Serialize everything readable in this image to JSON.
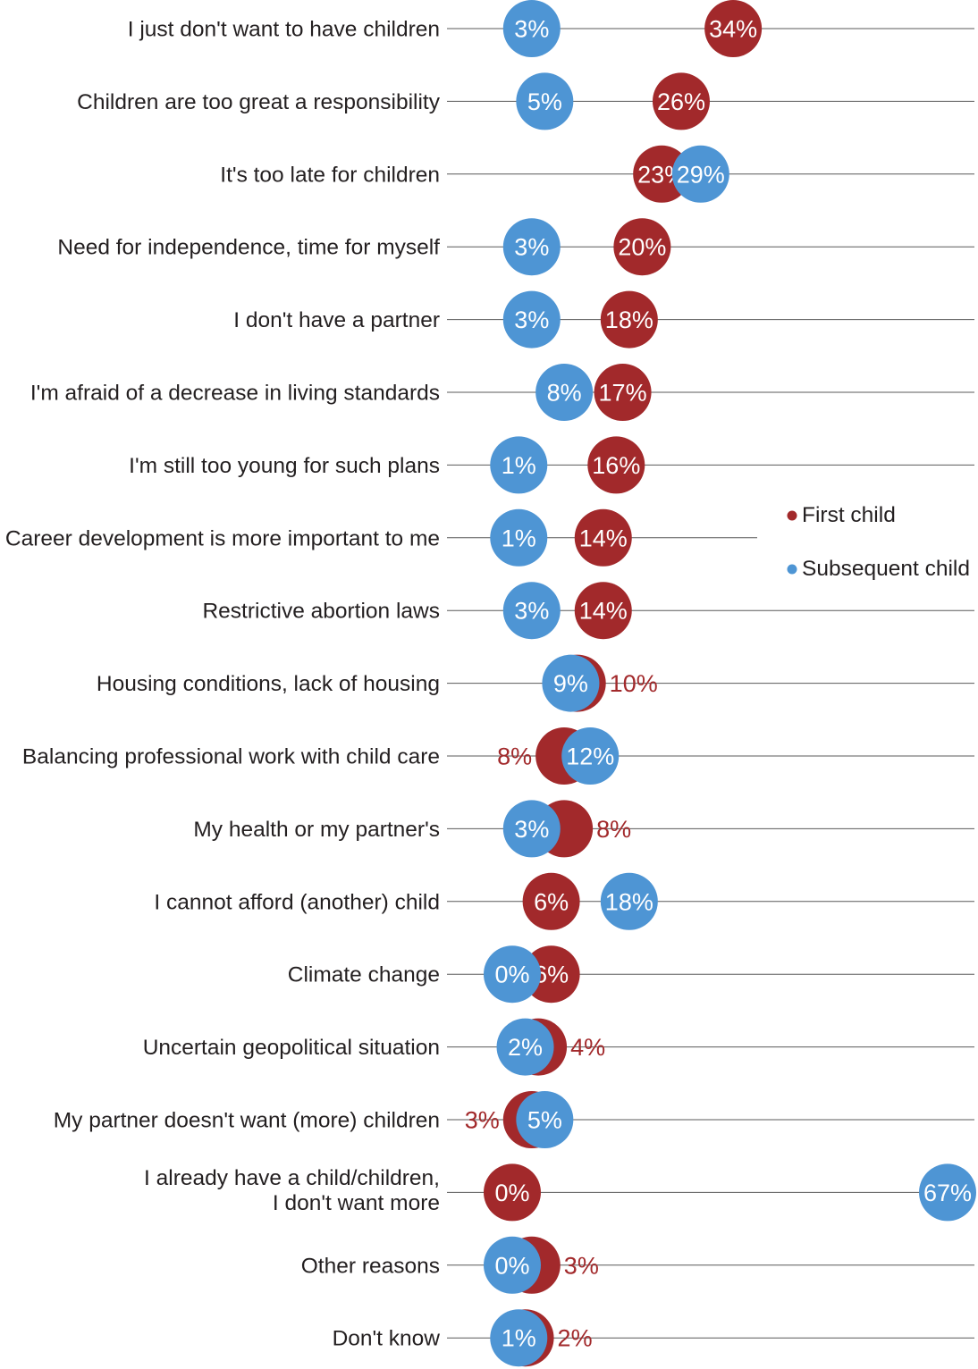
{
  "chart_data": {
    "type": "scatter",
    "orientation": "horizontal",
    "categories": [
      "I just don't want to have children",
      "Children are too great a responsibility",
      "It's too late for children",
      "Need for independence, time for myself",
      "I don't have a partner",
      "I'm afraid of a decrease in living standards",
      "I'm still too young for such plans",
      "Career development is more important to me",
      "Restrictive abortion laws",
      "Housing conditions, lack of housing",
      "Balancing professional work with child care",
      "My health or my partner's",
      "I cannot afford (another) child",
      "Climate change",
      "Uncertain geopolitical situation",
      "My partner doesn't want (more) children",
      [
        "I already have a child/children,",
        "I don't want more"
      ],
      "Other reasons",
      "Don't know"
    ],
    "series": [
      {
        "name": "First child",
        "color": "#a2292b",
        "values": [
          34,
          26,
          23,
          20,
          18,
          17,
          16,
          14,
          14,
          10,
          8,
          8,
          6,
          6,
          4,
          3,
          0,
          3,
          2
        ]
      },
      {
        "name": "Subsequent child",
        "color": "#4e95d4",
        "values": [
          3,
          5,
          29,
          3,
          3,
          8,
          1,
          1,
          3,
          9,
          12,
          3,
          18,
          0,
          2,
          5,
          67,
          0,
          1
        ]
      }
    ],
    "value_suffix": "%",
    "xlim": [
      0,
      67
    ],
    "grid": true
  }
}
